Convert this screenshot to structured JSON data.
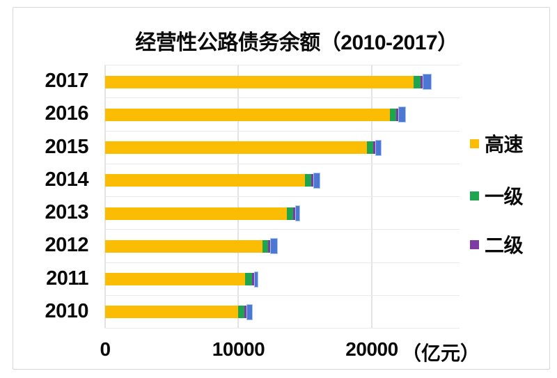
{
  "chart": {
    "title": "经营性公路债务余额（2010-2017）",
    "unit_label": "（亿元）"
  },
  "x_axis": {
    "tick_labels": [
      "0",
      "10000",
      "20000"
    ],
    "unit": "（亿元）"
  },
  "legend": {
    "items": [
      {
        "label": "高速",
        "color": "#fbbc04"
      },
      {
        "label": "一级",
        "color": "#1fa54e"
      },
      {
        "label": "二级",
        "color": "#7d3ca3"
      }
    ]
  },
  "chart_data": {
    "type": "bar",
    "orientation": "horizontal",
    "stacked": true,
    "title": "经营性公路债务余额（2010-2017）",
    "categories": [
      "2017",
      "2016",
      "2015",
      "2014",
      "2013",
      "2012",
      "2011",
      "2010"
    ],
    "series": [
      {
        "name": "高速",
        "color": "#fbbc04",
        "values": [
          23150,
          21350,
          19650,
          15000,
          13650,
          11800,
          10480,
          9960
        ]
      },
      {
        "name": "一级",
        "color": "#1fa54e",
        "values": [
          520,
          470,
          435,
          470,
          440,
          435,
          520,
          470
        ]
      },
      {
        "name": "二级",
        "color": "#7d3ca3",
        "values": [
          730,
          610,
          560,
          575,
          435,
          610,
          385,
          555
        ]
      }
    ],
    "x_ticks": [
      0,
      10000,
      20000
    ],
    "xlim": [
      0,
      26580
    ],
    "xlabel": "（亿元）",
    "ylabel": "",
    "grid": "vertical-light-gray",
    "legend_position": "right",
    "selected_series": "二级",
    "selection_overlay_color": "#4c78d4",
    "selection_border_color": "#a9c6f8"
  }
}
